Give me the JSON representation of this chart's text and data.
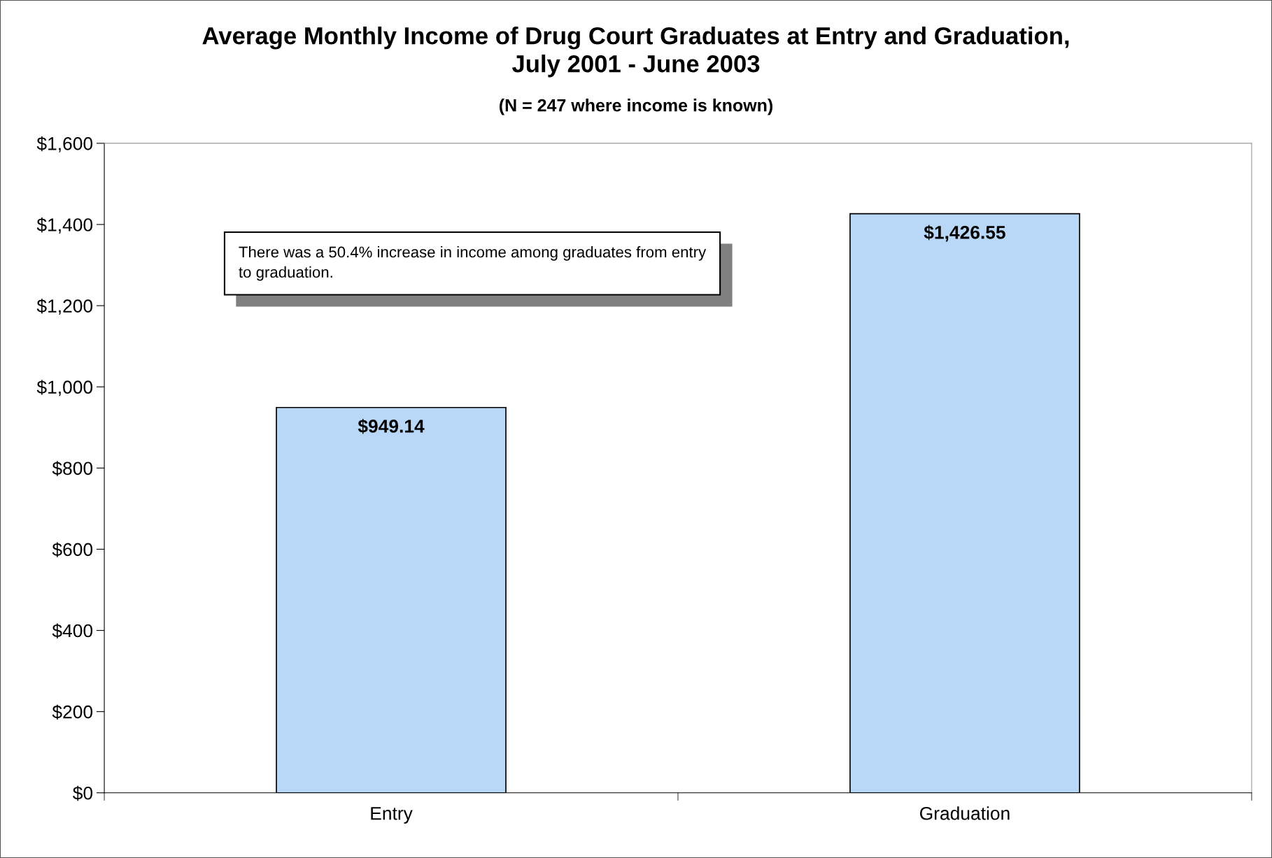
{
  "chart_data": {
    "type": "bar",
    "title": "Average Monthly Income of Drug Court Graduates at Entry and Graduation,\nJuly 2001 - June 2003",
    "subtitle": "(N = 247 where income is known)",
    "categories": [
      "Entry",
      "Graduation"
    ],
    "values": [
      949.14,
      1426.55
    ],
    "value_labels": [
      "$949.14",
      "$1,426.55"
    ],
    "color": "#b9d7f7",
    "ylim": [
      0,
      1600
    ],
    "yticks": [
      {
        "value": 0,
        "label": "$0"
      },
      {
        "value": 200,
        "label": "$200"
      },
      {
        "value": 400,
        "label": "$400"
      },
      {
        "value": 600,
        "label": "$600"
      },
      {
        "value": 800,
        "label": "$800"
      },
      {
        "value": 1000,
        "label": "$1,000"
      },
      {
        "value": 1200,
        "label": "$1,200"
      },
      {
        "value": 1400,
        "label": "$1,400"
      },
      {
        "value": 1600,
        "label": "$1,600"
      }
    ],
    "grid": false,
    "annotations": [
      "There was a 50.4% increase in income among graduates from entry to graduation."
    ]
  }
}
